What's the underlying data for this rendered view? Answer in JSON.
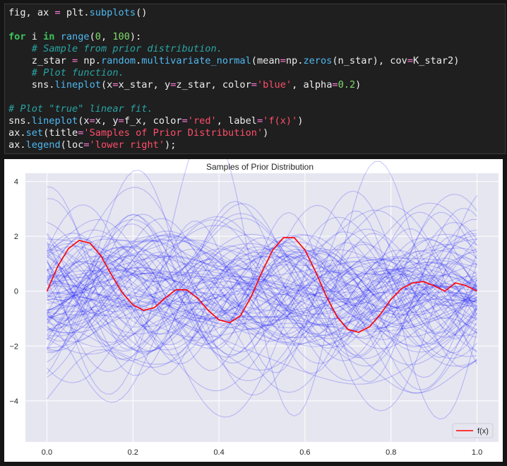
{
  "code_lines": [
    [
      {
        "t": "fig, ax ",
        "c": ""
      },
      {
        "t": "=",
        "c": "op"
      },
      {
        "t": " plt.",
        "c": ""
      },
      {
        "t": "subplots",
        "c": "fn"
      },
      {
        "t": "()",
        "c": ""
      }
    ],
    [],
    [
      {
        "t": "for",
        "c": "kw"
      },
      {
        "t": " i ",
        "c": ""
      },
      {
        "t": "in",
        "c": "kw"
      },
      {
        "t": " ",
        "c": ""
      },
      {
        "t": "range",
        "c": "bi"
      },
      {
        "t": "(",
        "c": ""
      },
      {
        "t": "0",
        "c": "num"
      },
      {
        "t": ", ",
        "c": ""
      },
      {
        "t": "100",
        "c": "num"
      },
      {
        "t": "):",
        "c": ""
      }
    ],
    [
      {
        "t": "    ",
        "c": ""
      },
      {
        "t": "# Sample from prior distribution.",
        "c": "cm"
      }
    ],
    [
      {
        "t": "    z_star ",
        "c": ""
      },
      {
        "t": "=",
        "c": "op"
      },
      {
        "t": " np.",
        "c": ""
      },
      {
        "t": "random",
        "c": "fn"
      },
      {
        "t": ".",
        "c": ""
      },
      {
        "t": "multivariate_normal",
        "c": "fn"
      },
      {
        "t": "(mean",
        "c": ""
      },
      {
        "t": "=",
        "c": "op"
      },
      {
        "t": "np.",
        "c": ""
      },
      {
        "t": "zeros",
        "c": "fn"
      },
      {
        "t": "(n_star), cov",
        "c": ""
      },
      {
        "t": "=",
        "c": "op"
      },
      {
        "t": "K_star2)",
        "c": ""
      }
    ],
    [
      {
        "t": "    ",
        "c": ""
      },
      {
        "t": "# Plot function.",
        "c": "cm"
      }
    ],
    [
      {
        "t": "    sns.",
        "c": ""
      },
      {
        "t": "lineplot",
        "c": "fn"
      },
      {
        "t": "(x",
        "c": ""
      },
      {
        "t": "=",
        "c": "op"
      },
      {
        "t": "x_star, y",
        "c": ""
      },
      {
        "t": "=",
        "c": "op"
      },
      {
        "t": "z_star, color",
        "c": ""
      },
      {
        "t": "=",
        "c": "op"
      },
      {
        "t": "'blue'",
        "c": "str"
      },
      {
        "t": ", alpha",
        "c": ""
      },
      {
        "t": "=",
        "c": "op"
      },
      {
        "t": "0.2",
        "c": "num"
      },
      {
        "t": ")",
        "c": ""
      }
    ],
    [],
    [
      {
        "t": "# Plot \"true\" linear fit.",
        "c": "cm"
      }
    ],
    [
      {
        "t": "sns.",
        "c": ""
      },
      {
        "t": "lineplot",
        "c": "fn"
      },
      {
        "t": "(x",
        "c": ""
      },
      {
        "t": "=",
        "c": "op"
      },
      {
        "t": "x, y",
        "c": ""
      },
      {
        "t": "=",
        "c": "op"
      },
      {
        "t": "f_x, color",
        "c": ""
      },
      {
        "t": "=",
        "c": "op"
      },
      {
        "t": "'red'",
        "c": "str"
      },
      {
        "t": ", label",
        "c": ""
      },
      {
        "t": "=",
        "c": "op"
      },
      {
        "t": "'f(x)'",
        "c": "str"
      },
      {
        "t": ")",
        "c": ""
      }
    ],
    [
      {
        "t": "ax.",
        "c": ""
      },
      {
        "t": "set",
        "c": "fn"
      },
      {
        "t": "(title",
        "c": ""
      },
      {
        "t": "=",
        "c": "op"
      },
      {
        "t": "'Samples of Prior Distribution'",
        "c": "str"
      },
      {
        "t": ")",
        "c": ""
      }
    ],
    [
      {
        "t": "ax.",
        "c": ""
      },
      {
        "t": "legend",
        "c": "fn"
      },
      {
        "t": "(loc",
        "c": ""
      },
      {
        "t": "=",
        "c": "op"
      },
      {
        "t": "'lower right'",
        "c": "str"
      },
      {
        "t": ");",
        "c": ""
      }
    ]
  ],
  "chart_data": {
    "type": "line",
    "title": "Samples of Prior Distribution",
    "xlim": [
      -0.05,
      1.05
    ],
    "ylim": [
      -5.5,
      4.3
    ],
    "xticks": [
      0.0,
      0.2,
      0.4,
      0.6,
      0.8,
      1.0
    ],
    "xtick_labels": [
      "0.0",
      "0.2",
      "0.4",
      "0.6",
      "0.8",
      "1.0"
    ],
    "yticks": [
      -4,
      -2,
      0,
      2,
      4
    ],
    "ytick_labels": [
      "−4",
      "−2",
      "0",
      "2",
      "4"
    ],
    "grid": true,
    "legend_position": "lower-right",
    "samples_color": "#0000ff",
    "samples_alpha": 0.2,
    "sample_count": 100,
    "true_function": {
      "name": "f(x)",
      "color": "#ff0000",
      "x": [
        0.0,
        0.025,
        0.05,
        0.075,
        0.1,
        0.125,
        0.15,
        0.175,
        0.2,
        0.225,
        0.25,
        0.275,
        0.3,
        0.325,
        0.35,
        0.375,
        0.4,
        0.425,
        0.45,
        0.475,
        0.5,
        0.525,
        0.55,
        0.575,
        0.6,
        0.625,
        0.65,
        0.675,
        0.7,
        0.725,
        0.75,
        0.775,
        0.8,
        0.825,
        0.85,
        0.875,
        0.9,
        0.925,
        0.95,
        0.975,
        1.0
      ],
      "y": [
        0.0,
        0.9,
        1.55,
        1.85,
        1.75,
        1.3,
        0.6,
        -0.05,
        -0.5,
        -0.7,
        -0.6,
        -0.25,
        0.05,
        0.05,
        -0.25,
        -0.7,
        -1.05,
        -1.15,
        -0.9,
        -0.2,
        0.7,
        1.5,
        1.95,
        1.95,
        1.5,
        0.7,
        -0.2,
        -0.95,
        -1.4,
        -1.5,
        -1.3,
        -0.85,
        -0.3,
        0.1,
        0.3,
        0.35,
        0.2,
        0.0,
        0.3,
        0.2,
        0.0
      ]
    }
  }
}
